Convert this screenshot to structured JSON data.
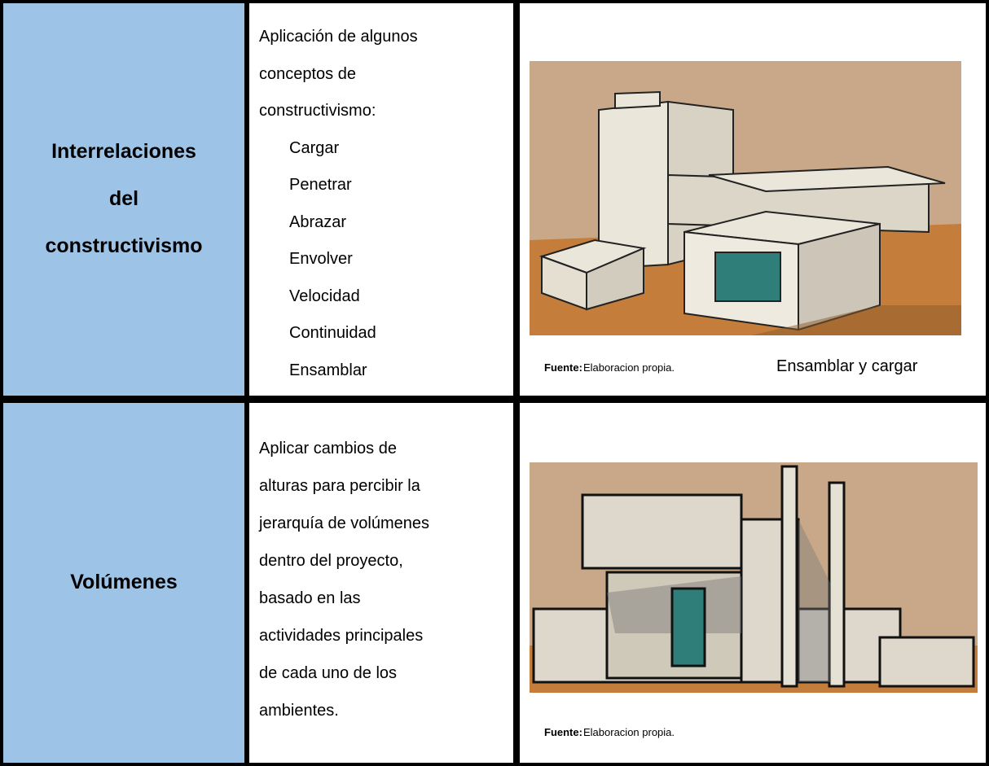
{
  "table": {
    "rows": [
      {
        "label": [
          "Interrelaciones",
          "del",
          "constructivismo"
        ],
        "description": [
          "Aplicación de algunos",
          "conceptos de",
          "constructivismo:"
        ],
        "items": [
          "Cargar",
          "Penetrar",
          "Abrazar",
          "Envolver",
          "Velocidad",
          "Continuidad",
          "Ensamblar"
        ],
        "source_label": "Fuente:",
        "source": "Elaboracion propia.",
        "caption": "Ensamblar y cargar"
      },
      {
        "label": [
          "Volúmenes"
        ],
        "description": [
          "Aplicar cambios de",
          "alturas para percibir la",
          "jerarquía de volúmenes",
          "dentro del proyecto,",
          "basado en las",
          "actividades principales",
          "de cada uno de los",
          "ambientes."
        ],
        "source_label": "Fuente:",
        "source": "Elaboracion propia."
      }
    ]
  }
}
